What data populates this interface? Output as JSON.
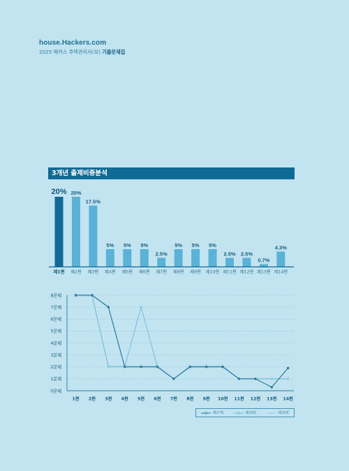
{
  "header": {
    "site": "house.Hackers.com",
    "subtitle_plain": "2025 해커스 주택관리사(보) ",
    "subtitle_bold": "기출문제집"
  },
  "section": {
    "title": "3개년 출제비중분석"
  },
  "colors": {
    "background": "#c1e4f0",
    "bar_highlight": "#0f6a95",
    "bar_normal": "#5ab2d6",
    "series_27": "#2a7ba0",
    "series_26": "#6cb7d6",
    "series_25": "#9fd0e6"
  },
  "chart_data": [
    {
      "type": "bar",
      "categories": [
        "제1편",
        "제2편",
        "제3편",
        "제4편",
        "제5편",
        "제6편",
        "제7편",
        "제8편",
        "제9편",
        "제10편",
        "제11편",
        "제12편",
        "제13편",
        "제14편"
      ],
      "values": [
        20,
        20,
        17.5,
        5,
        5,
        5,
        2.5,
        5,
        5,
        5,
        2.5,
        2.5,
        0.7,
        4.3
      ],
      "value_labels": [
        "20%",
        "20%",
        "17.5%",
        "5%",
        "5%",
        "5%",
        "2.5%",
        "5%",
        "5%",
        "5%",
        "2.5%",
        "2.5%",
        "0.7%",
        "4.3%"
      ],
      "highlight_index": 0,
      "ylim": [
        0,
        20
      ]
    },
    {
      "type": "line",
      "categories": [
        "1편",
        "2편",
        "3편",
        "4편",
        "5편",
        "6편",
        "7편",
        "8편",
        "9편",
        "10편",
        "11편",
        "12편",
        "13편",
        "14편"
      ],
      "y_ticks": [
        "0문제",
        "1문제",
        "2문제",
        "3문제",
        "4문제",
        "5문제",
        "6문제",
        "7문제",
        "8문제"
      ],
      "ylim": [
        0,
        8
      ],
      "series": [
        {
          "name": "제27회",
          "values": [
            8,
            8,
            7,
            2,
            2,
            2,
            1,
            2,
            2,
            2,
            1,
            1,
            0.3,
            1.9
          ]
        },
        {
          "name": "제26회",
          "values": [
            8,
            8,
            2,
            2,
            7,
            2,
            1,
            2,
            2,
            2,
            1,
            1,
            1,
            1
          ]
        },
        {
          "name": "제25회",
          "values": [
            7.9,
            7.9,
            2.1,
            2.1,
            2.1,
            2.1,
            1,
            2.1,
            2.1,
            2.1,
            1,
            1,
            1,
            1
          ]
        }
      ],
      "legend": "bottom-right"
    }
  ]
}
